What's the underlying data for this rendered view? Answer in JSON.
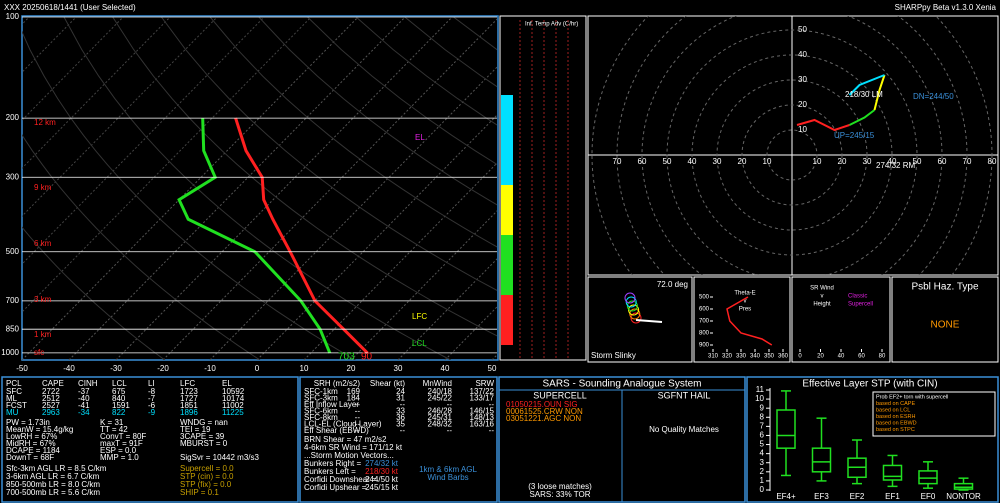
{
  "header": {
    "station_time": "XXX   20250618/1441  (User Selected)",
    "version": "SHARPpy Beta v1.3.0 Xenia"
  },
  "skewt": {
    "plim": [
      100,
      1050
    ],
    "tlim": [
      -50,
      50
    ],
    "pressures": [
      100,
      200,
      300,
      500,
      700,
      850,
      1000
    ],
    "temps": [
      -50,
      -40,
      -30,
      -20,
      -10,
      0,
      10,
      20,
      30,
      40,
      50
    ],
    "heights": [
      "12 km",
      "9 km",
      "6 km",
      "3 km",
      "1 km",
      "sfc"
    ],
    "profile": {
      "pressure": [
        1000,
        850,
        700,
        500,
        400,
        350,
        300,
        250,
        200
      ],
      "temperature": [
        22,
        12,
        0,
        -15.5,
        -26,
        -32,
        -37,
        -46,
        -55
      ],
      "dewpoint": [
        14,
        7,
        -3,
        -23,
        -44,
        -50,
        -47,
        -55,
        -62
      ]
    },
    "annotations": {
      "el": "EL",
      "lfc": "LFC",
      "lcl": "LCL",
      "sfc_td": "703",
      "sfc_t": "90"
    }
  },
  "temp_adv": {
    "title": "Inf. Temp Adv (C/hr)"
  },
  "hodograph": {
    "rings": [
      10,
      20,
      30,
      40,
      50,
      60,
      70,
      80
    ],
    "segments": [
      {
        "color": "#ff2020",
        "u": [
          2,
          9,
          17,
          23
        ],
        "v": [
          12,
          14,
          10,
          12
        ]
      },
      {
        "color": "#20e020",
        "u": [
          23,
          29,
          33
        ],
        "v": [
          12,
          15,
          18
        ]
      },
      {
        "color": "#ffff00",
        "u": [
          33,
          35,
          37
        ],
        "v": [
          18,
          26,
          32
        ]
      },
      {
        "color": "#00e0ff",
        "u": [
          37,
          27,
          23
        ],
        "v": [
          32,
          28,
          24
        ]
      }
    ],
    "labels": {
      "rm": "274/32 RM",
      "lm": "218/30 LM",
      "dn": "DN=244/50",
      "up": "UP=245/15"
    }
  },
  "slinky": {
    "angle": "72.0 deg",
    "title": "Storm Slinky"
  },
  "thetae": {
    "title": [
      "Theta-E",
      "v",
      "Pres"
    ],
    "yticks": [
      500,
      600,
      700,
      800,
      900
    ],
    "xticks": [
      310,
      320,
      330,
      340,
      350,
      360
    ],
    "pressure": [
      900,
      850,
      800,
      700,
      600,
      500
    ],
    "values": [
      352,
      345,
      330,
      322,
      320,
      335
    ]
  },
  "srwind": {
    "title": [
      "SR Wind",
      "v",
      "Height"
    ],
    "storm": [
      "Classic",
      "Supercell"
    ],
    "xticks": [
      0,
      20,
      40,
      60,
      80
    ]
  },
  "hazard": {
    "title": "Psbl Haz. Type",
    "value": "NONE"
  },
  "thermo": {
    "header": [
      "PCL",
      "CAPE",
      "CINH",
      "LCL",
      "LI",
      "LFC",
      "EL"
    ],
    "rows": [
      [
        "SFC",
        "2722",
        "-37",
        "675",
        "-8",
        "1723",
        "10592"
      ],
      [
        "ML",
        "2512",
        "-40",
        "840",
        "-7",
        "1727",
        "10174"
      ],
      [
        "FCST",
        "2527",
        "-41",
        "1591",
        "-6",
        "1851",
        "11002"
      ],
      [
        "MU",
        "2963",
        "-34",
        "822",
        "-9",
        "1896",
        "11225"
      ]
    ],
    "col1": [
      "PW = 1.73in",
      "MeanW = 15.4g/kg",
      "LowRH = 67%",
      "MidRH = 67%",
      "DCAPE = 1184",
      "DownT = 68F"
    ],
    "col2": [
      "K = 31",
      "TT = 42",
      "ConvT = 80F",
      "maxT = 91F",
      "ESP = 0.0",
      "MMP = 1.0"
    ],
    "col3": [
      "WNDG = nan",
      "TEI = 19",
      "3CAPE = 39",
      "MBURST = 0",
      "SigSvr = 10442 m3/s3"
    ],
    "lapse": [
      "Sfc-3km AGL LR = 8.5 C/km",
      "3-6km AGL LR = 6.7 C/km",
      "850-500mb LR = 8.0 C/km",
      "700-500mb LR = 5.6 C/km"
    ],
    "indices": [
      "Supercell = 0.0",
      "STP (cin) = 0.0",
      "STP (fix) = 0.0",
      "SHIP = 0.1"
    ]
  },
  "kinematics": {
    "header": [
      "SRH (m2/s2)",
      "Shear (kt)",
      "MnWind",
      "SRW"
    ],
    "rows": [
      [
        "SFC-1km",
        "169",
        "24",
        "240/18",
        "137/22"
      ],
      [
        "SFC-3km",
        "184",
        "31",
        "245/22",
        "133/17"
      ],
      [
        "Eff Inflow Layer",
        "--",
        "--",
        "--",
        "--"
      ],
      [
        "SFC-6km",
        "--",
        "33",
        "246/28",
        "146/15"
      ],
      [
        "SFC-8km",
        "--",
        "36",
        "245/31",
        "148/13"
      ],
      [
        "LCL-EL (Cloud Layer)",
        "--",
        "35",
        "248/32",
        "163/16"
      ],
      [
        "Eff Shear (EBWD)",
        "--",
        "--",
        "--",
        "--"
      ]
    ],
    "lines": [
      "BRN Shear = 47 m2/s2",
      "4-6km SR Wind = 171/12 kt",
      "...Storm Motion Vectors..."
    ],
    "vectors": [
      [
        "Bunkers Right =",
        "274/32 kt"
      ],
      [
        "Bunkers Left =",
        "218/30 kt"
      ],
      [
        "Corfidi Downshear =",
        "244/50 kt"
      ],
      [
        "Corfidi Upshear =",
        "245/15 kt"
      ]
    ],
    "barbs": [
      "1km & 6km AGL",
      "Wind Barbs"
    ]
  },
  "sars": {
    "title": "SARS - Sounding Analogue System",
    "supercell": "SUPERCELL",
    "hail": "SGFNT HAIL",
    "matches": [
      "01050215.OUN  SIG",
      "00061525.CRW  NON",
      "03051221.AGC  NON"
    ],
    "hail_matches": "No Quality Matches",
    "loose": "(3 loose matches)",
    "tor": "SARS: 33% TOR"
  },
  "stp": {
    "title": "Effective Layer STP (with CIN)",
    "ylim": [
      0,
      11
    ],
    "yticks": [
      0,
      1,
      2,
      3,
      4,
      5,
      6,
      7,
      8,
      9,
      10,
      11
    ],
    "categories": [
      "EF4+",
      "EF3",
      "EF2",
      "EF1",
      "EF0",
      "NONTOR"
    ],
    "boxes": [
      {
        "low": 1.6,
        "q1": 4.6,
        "median": 6.0,
        "q3": 8.8,
        "high": 10.9
      },
      {
        "low": 1.0,
        "q1": 2.0,
        "median": 3.1,
        "q3": 4.6,
        "high": 7.9
      },
      {
        "low": 0.7,
        "q1": 1.4,
        "median": 2.5,
        "q3": 3.5,
        "high": 5.5
      },
      {
        "low": 0.4,
        "q1": 1.1,
        "median": 1.5,
        "q3": 2.7,
        "high": 3.8
      },
      {
        "low": 0.2,
        "q1": 0.7,
        "median": 1.3,
        "q3": 2.1,
        "high": 3.1
      },
      {
        "low": 0,
        "q1": 0.1,
        "median": 0.3,
        "q3": 0.7,
        "high": 1.3
      }
    ],
    "legend": [
      "Prob EF2+ torn with supercell",
      "based on CAPE",
      "based on LCL",
      "based on ESRH",
      "based on EBWD",
      "based on STPC"
    ]
  }
}
